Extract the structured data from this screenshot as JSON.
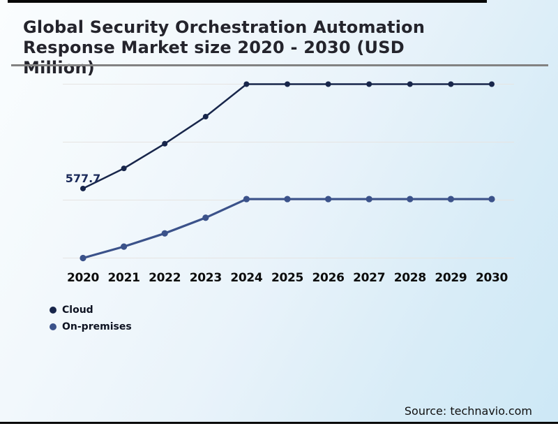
{
  "header": {
    "title_full": "Global Security Orchestration Automation Response Market size 2020 - 2030 (USD Million)",
    "title_lines": [
      "Global Security Orchestration Automation",
      "Response Market size 2020 - 2030 (USD",
      "Million)"
    ]
  },
  "chart_data": {
    "type": "line",
    "title": "Global Security Orchestration Automation Response Market size 2020 - 2030 (USD Million)",
    "categories": [
      "2020",
      "2021",
      "2022",
      "2023",
      "2024",
      "2025",
      "2026",
      "2027",
      "2028",
      "2029",
      "2030"
    ],
    "series": [
      {
        "name": "Cloud",
        "color": "#18264b",
        "values": [
          577.7,
          745,
          950,
          1175,
          1445,
          1445,
          1445,
          1445,
          1445,
          1445,
          1445
        ]
      },
      {
        "name": "On-premises",
        "color": "#3b528a",
        "values": [
          0,
          95,
          205,
          335,
          490,
          490,
          490,
          490,
          490,
          490,
          490
        ]
      }
    ],
    "ylim": [
      0,
      1445
    ],
    "grid": "horizontal",
    "gridline_count": 4,
    "legend_position": "bottom-left",
    "data_labels": [
      {
        "series": "Cloud",
        "category": "2020",
        "index": 0,
        "text": "577.7"
      }
    ]
  },
  "footer": {
    "source": "Source: technavio.com"
  }
}
